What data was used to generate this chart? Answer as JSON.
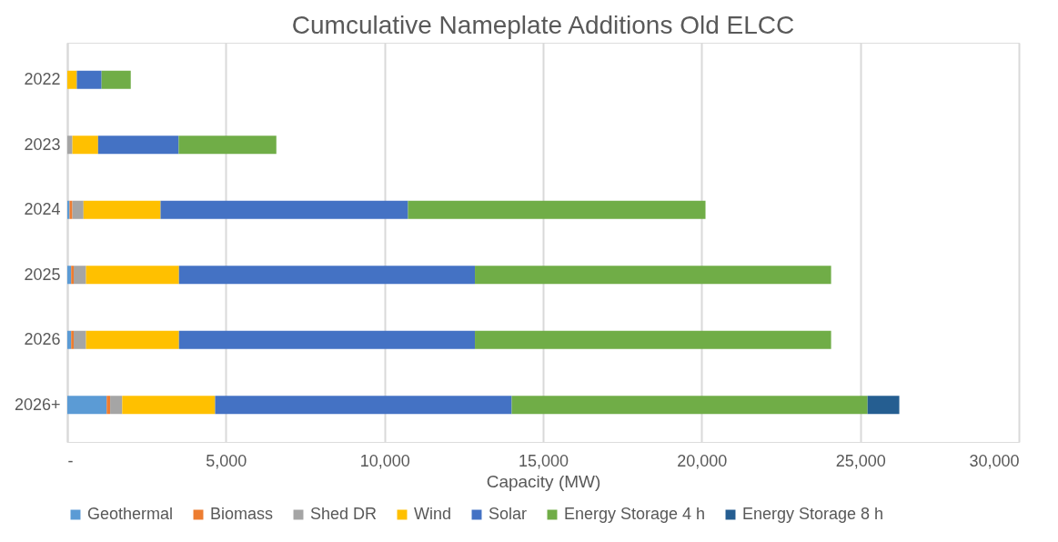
{
  "chart_data": {
    "type": "bar",
    "orientation": "horizontal",
    "stacked": true,
    "title": "Cumculative Nameplate Additions Old ELCC",
    "xlabel": "Capacity (MW)",
    "categories": [
      "2022",
      "2023",
      "2024",
      "2025",
      "2026",
      "2026+"
    ],
    "series": [
      {
        "name": "Geothermal",
        "color": "#5b9bd5",
        "values": [
          0,
          0,
          70,
          120,
          120,
          1240
        ]
      },
      {
        "name": "Biomass",
        "color": "#ed7d31",
        "values": [
          0,
          0,
          90,
          80,
          80,
          110
        ]
      },
      {
        "name": "Shed DR",
        "color": "#a5a5a5",
        "values": [
          0,
          160,
          350,
          390,
          390,
          380
        ]
      },
      {
        "name": "Wind",
        "color": "#ffc000",
        "values": [
          300,
          810,
          2430,
          2930,
          2930,
          2930
        ]
      },
      {
        "name": "Solar",
        "color": "#4472c4",
        "values": [
          780,
          2540,
          7800,
          9330,
          9330,
          9350
        ]
      },
      {
        "name": "Energy Storage 4 h",
        "color": "#70ad47",
        "values": [
          920,
          3080,
          9380,
          11230,
          11230,
          11220
        ]
      },
      {
        "name": "Energy Storage 8 h",
        "color": "#255e91",
        "values": [
          0,
          0,
          0,
          0,
          0,
          1000
        ]
      }
    ],
    "xlim": [
      0,
      30000
    ],
    "xticks": [
      {
        "value": 0,
        "label": "-"
      },
      {
        "value": 5000,
        "label": "5,000"
      },
      {
        "value": 10000,
        "label": "10,000"
      },
      {
        "value": 15000,
        "label": "15,000"
      },
      {
        "value": 20000,
        "label": "20,000"
      },
      {
        "value": 25000,
        "label": "25,000"
      },
      {
        "value": 30000,
        "label": "30,000"
      }
    ],
    "grid": "x",
    "legend": "bottom"
  }
}
